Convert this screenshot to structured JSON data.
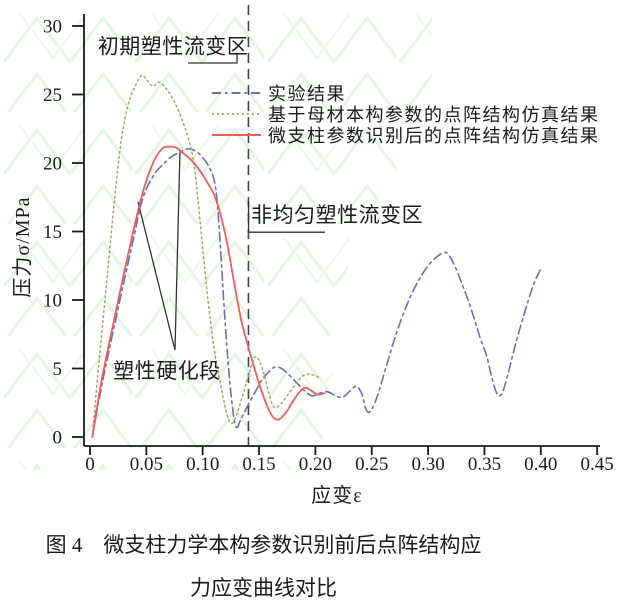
{
  "colors": {
    "axis": "#1a1a1a",
    "annotation": "#333333",
    "boundary_dashed": "#444444",
    "watermark_green": "#c9ecc6"
  },
  "figure": {
    "caption_line1": "图 4　微支柱力学本构参数识别前后点阵结构应",
    "caption_line2": "力应变曲线对比"
  },
  "chart_data": {
    "type": "line",
    "title": "",
    "xlabel": "应变ε",
    "ylabel": "压力σ/MPa",
    "xlim": [
      0,
      0.45
    ],
    "ylim": [
      0,
      30
    ],
    "grid": false,
    "legend_position": "upper-right-inside",
    "x_ticks": [
      0,
      0.05,
      0.1,
      0.15,
      0.2,
      0.25,
      0.3,
      0.35,
      0.4,
      0.45
    ],
    "x_tick_labels": [
      "0",
      "0.05",
      "0.10",
      "0.15",
      "0.20",
      "0.25",
      "0.30",
      "0.35",
      "0.40",
      "0.45"
    ],
    "y_ticks": [
      0,
      5,
      10,
      15,
      20,
      25,
      30
    ],
    "y_tick_labels": [
      "0",
      "5",
      "10",
      "15",
      "20",
      "25",
      "30"
    ],
    "boundary_x": 0.1406,
    "series": [
      {
        "id": "experimental",
        "name": "实验结果",
        "color": "#6b6db4",
        "style": "dashdot",
        "width": 1.6,
        "points": [
          [
            0.002,
            0
          ],
          [
            0.01,
            3.6
          ],
          [
            0.02,
            7.5
          ],
          [
            0.03,
            11.3
          ],
          [
            0.04,
            15.0
          ],
          [
            0.045,
            16.9
          ],
          [
            0.05,
            18.1
          ],
          [
            0.055,
            18.9
          ],
          [
            0.06,
            19.5
          ],
          [
            0.07,
            20.3
          ],
          [
            0.075,
            20.6
          ],
          [
            0.08,
            20.8
          ],
          [
            0.085,
            21.0
          ],
          [
            0.09,
            21.0
          ],
          [
            0.095,
            20.8
          ],
          [
            0.1,
            20.4
          ],
          [
            0.105,
            19.8
          ],
          [
            0.11,
            18.8
          ],
          [
            0.113,
            17.0
          ],
          [
            0.116,
            13.5
          ],
          [
            0.119,
            9.5
          ],
          [
            0.123,
            5.0
          ],
          [
            0.127,
            1.8
          ],
          [
            0.13,
            0.7
          ],
          [
            0.134,
            1.3
          ],
          [
            0.14,
            2.3
          ],
          [
            0.146,
            3.2
          ],
          [
            0.152,
            4.1
          ],
          [
            0.158,
            4.7
          ],
          [
            0.164,
            5.1
          ],
          [
            0.17,
            5.0
          ],
          [
            0.177,
            4.5
          ],
          [
            0.184,
            3.9
          ],
          [
            0.19,
            3.4
          ],
          [
            0.197,
            3.0
          ],
          [
            0.204,
            3.2
          ],
          [
            0.211,
            3.3
          ],
          [
            0.218,
            3.0
          ],
          [
            0.224,
            2.9
          ],
          [
            0.23,
            3.3
          ],
          [
            0.236,
            3.7
          ],
          [
            0.241,
            3.2
          ],
          [
            0.245,
            2.0
          ],
          [
            0.249,
            1.9
          ],
          [
            0.255,
            3.0
          ],
          [
            0.263,
            5.2
          ],
          [
            0.272,
            7.6
          ],
          [
            0.282,
            9.8
          ],
          [
            0.292,
            11.5
          ],
          [
            0.302,
            12.7
          ],
          [
            0.312,
            13.4
          ],
          [
            0.317,
            13.4
          ],
          [
            0.323,
            12.6
          ],
          [
            0.33,
            11.2
          ],
          [
            0.338,
            9.4
          ],
          [
            0.346,
            7.3
          ],
          [
            0.352,
            5.9
          ],
          [
            0.357,
            4.2
          ],
          [
            0.361,
            3.2
          ],
          [
            0.365,
            3.1
          ],
          [
            0.37,
            4.3
          ],
          [
            0.377,
            6.6
          ],
          [
            0.385,
            8.9
          ],
          [
            0.393,
            11.0
          ],
          [
            0.4,
            12.3
          ]
        ]
      },
      {
        "id": "base-material-sim",
        "name": "基于母材本构参数的点阵结构仿真结果",
        "color": "#a9a361",
        "style": "dotted",
        "width": 1.5,
        "points": [
          [
            0.002,
            0
          ],
          [
            0.008,
            5.5
          ],
          [
            0.015,
            11.5
          ],
          [
            0.022,
            17.5
          ],
          [
            0.028,
            21.8
          ],
          [
            0.034,
            24.3
          ],
          [
            0.04,
            25.6
          ],
          [
            0.046,
            26.4
          ],
          [
            0.051,
            26.0
          ],
          [
            0.056,
            25.6
          ],
          [
            0.061,
            25.9
          ],
          [
            0.067,
            25.5
          ],
          [
            0.074,
            24.6
          ],
          [
            0.081,
            23.3
          ],
          [
            0.088,
            21.6
          ],
          [
            0.093,
            19.5
          ],
          [
            0.098,
            15.5
          ],
          [
            0.104,
            10.5
          ],
          [
            0.11,
            6.5
          ],
          [
            0.116,
            3.8
          ],
          [
            0.121,
            1.8
          ],
          [
            0.125,
            1.0
          ],
          [
            0.129,
            1.4
          ],
          [
            0.135,
            2.9
          ],
          [
            0.141,
            4.6
          ],
          [
            0.146,
            5.8
          ],
          [
            0.15,
            5.6
          ],
          [
            0.155,
            4.4
          ],
          [
            0.159,
            3.1
          ],
          [
            0.163,
            2.2
          ],
          [
            0.168,
            2.3
          ],
          [
            0.174,
            2.9
          ],
          [
            0.181,
            3.7
          ],
          [
            0.188,
            4.4
          ],
          [
            0.194,
            4.6
          ],
          [
            0.199,
            4.5
          ],
          [
            0.204,
            4.3
          ]
        ]
      },
      {
        "id": "identified-sim",
        "name": "微支柱参数识别后的点阵结构仿真结果",
        "color": "#ec5f58",
        "style": "solid",
        "width": 1.8,
        "points": [
          [
            0.002,
            0
          ],
          [
            0.01,
            4.0
          ],
          [
            0.02,
            8.0
          ],
          [
            0.03,
            11.9
          ],
          [
            0.04,
            15.6
          ],
          [
            0.047,
            17.9
          ],
          [
            0.053,
            19.4
          ],
          [
            0.059,
            20.5
          ],
          [
            0.065,
            21.1
          ],
          [
            0.071,
            21.2
          ],
          [
            0.077,
            21.1
          ],
          [
            0.083,
            20.7
          ],
          [
            0.09,
            20.2
          ],
          [
            0.097,
            19.5
          ],
          [
            0.104,
            18.6
          ],
          [
            0.11,
            17.7
          ],
          [
            0.116,
            16.2
          ],
          [
            0.122,
            14.0
          ],
          [
            0.128,
            11.2
          ],
          [
            0.134,
            8.6
          ],
          [
            0.14,
            6.7
          ],
          [
            0.146,
            5.0
          ],
          [
            0.152,
            3.4
          ],
          [
            0.158,
            2.1
          ],
          [
            0.163,
            1.4
          ],
          [
            0.168,
            1.3
          ],
          [
            0.174,
            1.8
          ],
          [
            0.18,
            2.6
          ],
          [
            0.186,
            3.3
          ],
          [
            0.191,
            3.6
          ],
          [
            0.196,
            3.4
          ],
          [
            0.202,
            3.1
          ],
          [
            0.208,
            3.2
          ]
        ]
      }
    ],
    "annotations": [
      {
        "id": "region-early",
        "text": "初期塑性流变区",
        "x": 0.0737,
        "y": 28.0,
        "align": "center"
      },
      {
        "id": "region-nonuniform",
        "text": "非均匀塑性流变区",
        "x": 0.143,
        "y": 15.7,
        "align": "left"
      },
      {
        "id": "hardening",
        "text": "塑性硬化段",
        "x": 0.0683,
        "y": 4.3,
        "align": "center"
      }
    ],
    "annotation_lines": [
      {
        "id": "early-underline",
        "points": [
          [
            0.087,
            27.3
          ],
          [
            0.1304,
            27.3
          ],
          [
            0.1304,
            28.05
          ]
        ]
      },
      {
        "id": "nonuniform-underline",
        "points": [
          [
            0.1406,
            17.2
          ],
          [
            0.1406,
            14.95
          ],
          [
            0.2085,
            14.95
          ]
        ]
      },
      {
        "id": "hardening-pointer-v",
        "points": [
          [
            0.0426,
            17.15
          ],
          [
            0.0754,
            6.35
          ],
          [
            0.0799,
            20.95
          ]
        ]
      }
    ]
  }
}
